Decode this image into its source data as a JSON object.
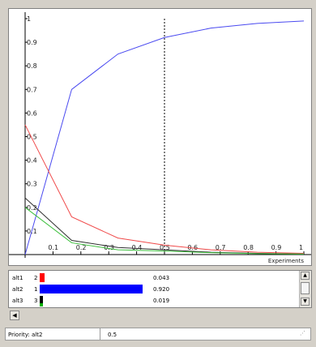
{
  "chart_data": {
    "type": "line",
    "xlabel": "Experiments",
    "x_ticks": [
      "0.1",
      "0.2",
      "0.3",
      "0.4",
      "0.5",
      "0.6",
      "0.7",
      "0.8",
      "0.9",
      "1"
    ],
    "y_ticks": [
      "1",
      "0.9",
      "0.8",
      "0.7",
      "0.6",
      "0.5",
      "0.4",
      "0.3",
      "0.2",
      "0.1"
    ],
    "xlim": [
      0,
      1
    ],
    "ylim": [
      0,
      1
    ],
    "marker_x": 0.5,
    "series": [
      {
        "color": "#4a4af0",
        "x": [
          0,
          0.167,
          0.333,
          0.5,
          0.667,
          0.833,
          1
        ],
        "values": [
          0.0,
          0.7,
          0.85,
          0.92,
          0.96,
          0.98,
          0.99
        ]
      },
      {
        "color": "#f04a4a",
        "x": [
          0,
          0.167,
          0.333,
          0.5,
          0.667,
          0.833,
          1
        ],
        "values": [
          0.55,
          0.16,
          0.07,
          0.04,
          0.02,
          0.01,
          0.005
        ]
      },
      {
        "color": "#303030",
        "x": [
          0,
          0.167,
          0.333,
          0.5,
          0.667,
          0.833,
          1
        ],
        "values": [
          0.24,
          0.06,
          0.03,
          0.02,
          0.01,
          0.005,
          0.002
        ]
      },
      {
        "color": "#3cbf3c",
        "x": [
          0,
          0.167,
          0.333,
          0.5,
          0.667,
          0.833,
          1
        ],
        "values": [
          0.2,
          0.05,
          0.02,
          0.015,
          0.008,
          0.004,
          0.002
        ]
      }
    ]
  },
  "alternatives": [
    {
      "name": "alt1",
      "index": "2",
      "value": 0.043,
      "value_text": "0.043",
      "color": "#ff0000"
    },
    {
      "name": "alt2",
      "index": "1",
      "value": 0.92,
      "value_text": "0.920",
      "color": "#0000ff"
    },
    {
      "name": "alt3",
      "index": "3",
      "value": 0.019,
      "value_text": "0.019",
      "color": "#000000"
    }
  ],
  "status": {
    "label": "Priority: alt2",
    "value": "0.5"
  },
  "colors": {
    "window_bg": "#d4d0c8",
    "panel_bg": "#ffffff",
    "alt3_accent": "#00b000"
  },
  "icons": {
    "scroll_up": "▲",
    "scroll_down": "▼",
    "scroll_left": "◀",
    "resize_grip": "⋰"
  }
}
